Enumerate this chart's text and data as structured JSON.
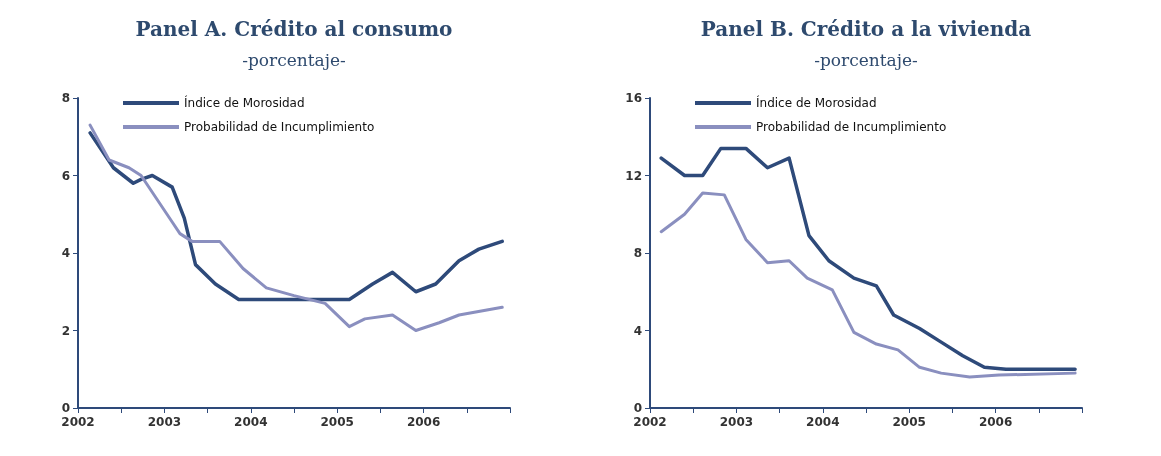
{
  "chart_data": [
    {
      "type": "line",
      "title": "Panel A. Crédito al consumo",
      "subtitle": "-porcentaje-",
      "legend": "top left",
      "grid": false,
      "marker": "none",
      "line_style": "solid",
      "xlim": [
        2002,
        2007
      ],
      "xticks": [
        2002,
        {
          "value": 2002.5,
          "label": null
        },
        2003,
        {
          "value": 2003.5,
          "label": null
        },
        2004,
        {
          "value": 2004.5,
          "label": null
        },
        2005,
        {
          "value": 2005.5,
          "label": null
        },
        2006,
        {
          "value": 2006.5,
          "label": null
        },
        {
          "value": 2007,
          "label": null
        }
      ],
      "ylim": [
        0,
        8
      ],
      "yticks": [
        0,
        2,
        4,
        6,
        8
      ],
      "series": [
        {
          "name": "Índice de Morosidad",
          "color": "#2e4a7a",
          "x": [
            2002.14,
            2002.41,
            2002.64,
            2002.73,
            2002.86,
            2003.09,
            2003.23,
            2003.36,
            2003.59,
            2003.86,
            2004.14,
            2004.41,
            2004.59,
            2004.86,
            2005.14,
            2005.41,
            2005.64,
            2005.91,
            2006.14,
            2006.41,
            2006.64,
            2006.91
          ],
          "values": [
            7.1,
            6.2,
            5.8,
            5.9,
            6.0,
            5.7,
            4.9,
            3.7,
            3.2,
            2.8,
            2.8,
            2.8,
            2.8,
            2.8,
            2.8,
            3.2,
            3.5,
            3.0,
            3.2,
            3.8,
            4.1,
            4.3
          ]
        },
        {
          "name": "Probabilidad de Incumplimiento",
          "color": "#8a8fbf",
          "x": [
            2002.14,
            2002.36,
            2002.59,
            2002.73,
            2002.91,
            2003.09,
            2003.18,
            2003.32,
            2003.64,
            2003.91,
            2004.18,
            2004.5,
            2004.86,
            2005.14,
            2005.32,
            2005.64,
            2005.91,
            2006.18,
            2006.41,
            2006.91
          ],
          "values": [
            7.3,
            6.4,
            6.2,
            6.0,
            5.4,
            4.8,
            4.5,
            4.3,
            4.3,
            3.6,
            3.1,
            2.9,
            2.7,
            2.1,
            2.3,
            2.4,
            2.0,
            2.2,
            2.4,
            2.6
          ]
        }
      ]
    },
    {
      "type": "line",
      "title": "Panel B. Crédito a la vivienda",
      "subtitle": "-porcentaje-",
      "legend": "top left",
      "grid": false,
      "marker": "none",
      "line_style": "solid",
      "xlim": [
        2002,
        2007
      ],
      "xticks": [
        2002,
        {
          "value": 2002.5,
          "label": null
        },
        2003,
        {
          "value": 2003.5,
          "label": null
        },
        2004,
        {
          "value": 2004.5,
          "label": null
        },
        2005,
        {
          "value": 2005.5,
          "label": null
        },
        2006,
        {
          "value": 2006.5,
          "label": null
        },
        {
          "value": 2007,
          "label": null
        }
      ],
      "ylim": [
        0,
        16
      ],
      "yticks": [
        0,
        4,
        8,
        12,
        16
      ],
      "series": [
        {
          "name": "Índice de Morosidad",
          "color": "#2e4a7a",
          "x": [
            2002.13,
            2002.4,
            2002.61,
            2002.82,
            2003.11,
            2003.36,
            2003.61,
            2003.84,
            2004.07,
            2004.36,
            2004.62,
            2004.82,
            2005.12,
            2005.37,
            2005.62,
            2005.87,
            2006.12,
            2006.92
          ],
          "values": [
            12.9,
            12.0,
            12.0,
            13.4,
            13.4,
            12.4,
            12.9,
            8.9,
            7.6,
            6.7,
            6.3,
            4.8,
            4.1,
            3.4,
            2.7,
            2.1,
            2.0,
            2.0
          ]
        },
        {
          "name": "Probabilidad de Incumplimiento",
          "color": "#8a8fbf",
          "x": [
            2002.13,
            2002.4,
            2002.61,
            2002.86,
            2003.11,
            2003.36,
            2003.61,
            2003.82,
            2004.11,
            2004.36,
            2004.62,
            2004.87,
            2005.12,
            2005.37,
            2005.7,
            2006.04,
            2006.92
          ],
          "values": [
            9.1,
            10.0,
            11.1,
            11.0,
            8.7,
            7.5,
            7.6,
            6.7,
            6.1,
            3.9,
            3.3,
            3.0,
            2.1,
            1.8,
            1.6,
            1.7,
            1.8
          ]
        }
      ]
    }
  ]
}
